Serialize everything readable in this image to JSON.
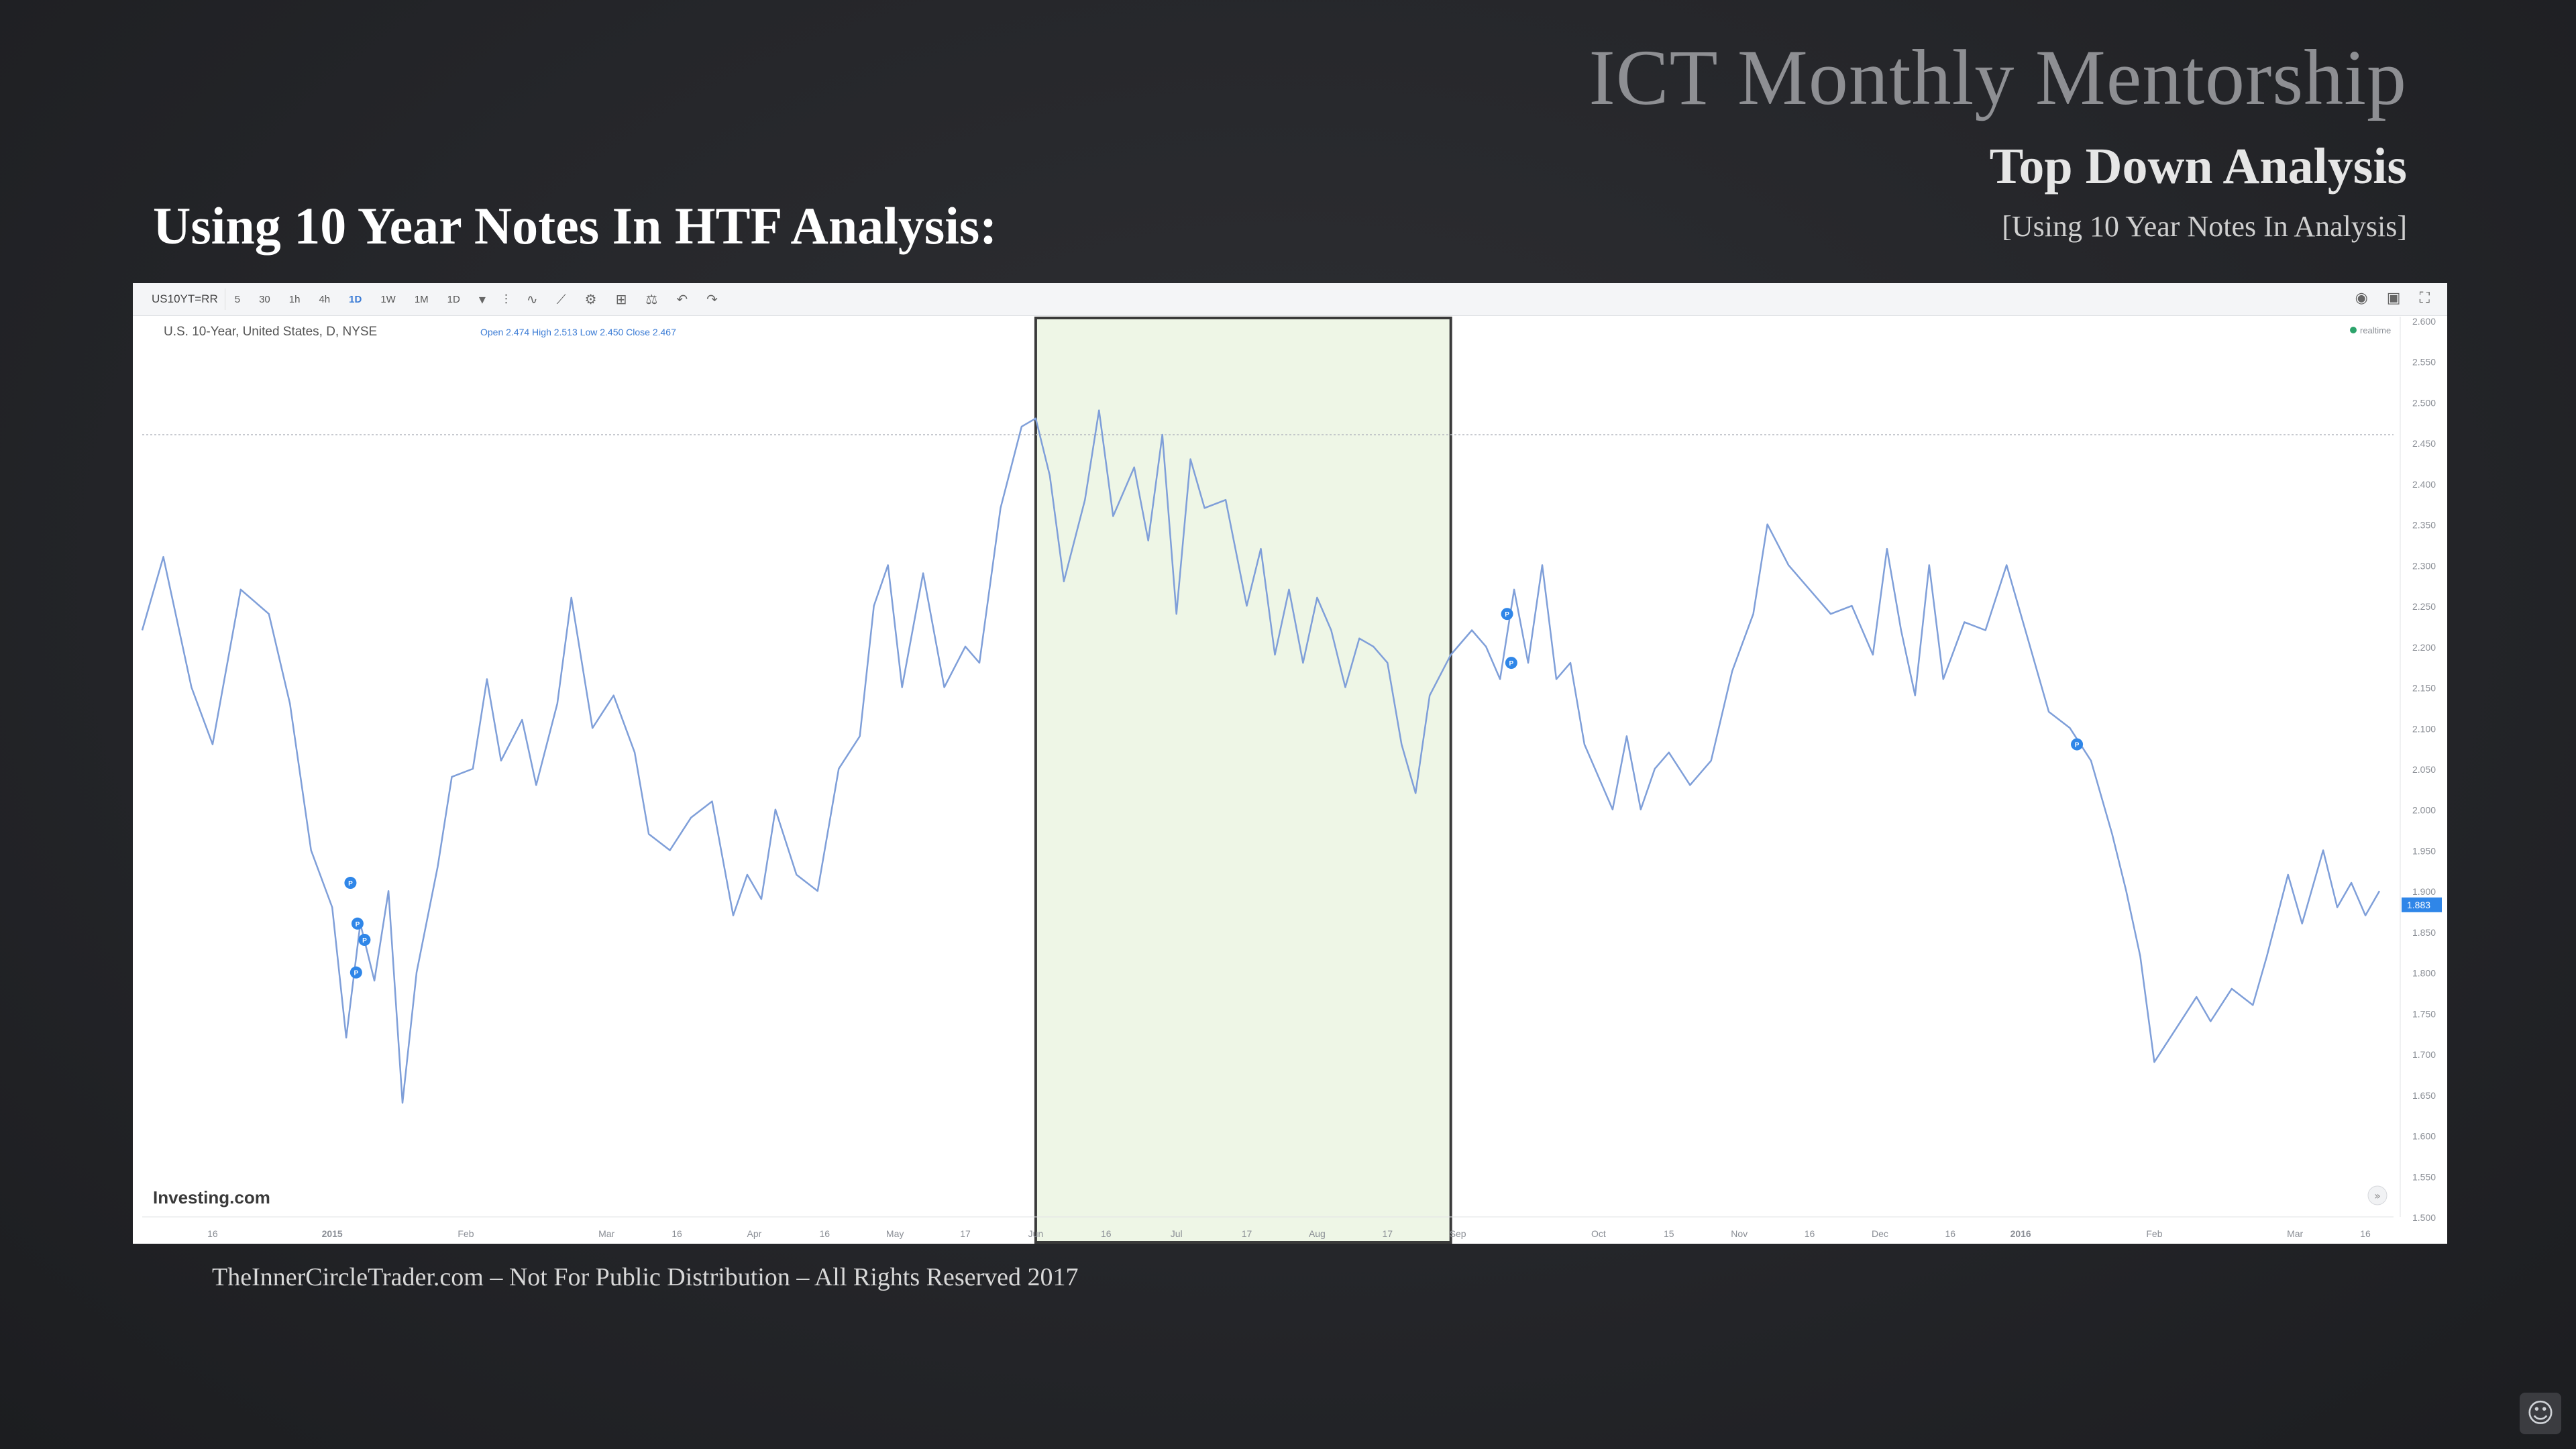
{
  "slide": {
    "brand_title": "ICT Monthly Mentorship",
    "subtitle": "Top Down Analysis",
    "bracket_note": "[Using 10 Year Notes In Analysis]",
    "heading": "Using 10 Year Notes In HTF Analysis:",
    "footer": "TheInnerCircleTrader.com – Not For Public Distribution – All Rights Reserved 2017"
  },
  "toolbar": {
    "symbol": "US10YT=RR",
    "intervals": [
      "5",
      "30",
      "1h",
      "4h",
      "1D",
      "1W",
      "1M",
      "1D"
    ],
    "active_interval": "1D"
  },
  "chart_data": {
    "type": "line",
    "title": "U.S. 10-Year, United States, D, NYSE",
    "ohlc": {
      "open_label": "Open",
      "open": "2.474",
      "high_label": "High",
      "high": "2.513",
      "low_label": "Low",
      "low": "2.450",
      "close_label": "Close",
      "close": "2.467"
    },
    "watermark": "Investing.com",
    "legend": "realtime",
    "line_color": "#7f9fd9",
    "highlight_color": "#eef6e6",
    "highlight_border": "#3a3a3a",
    "last_price": "1.883",
    "ylim": [
      1.5,
      2.6
    ],
    "y_ticks": [
      "2.600",
      "2.550",
      "2.500",
      "2.450",
      "2.400",
      "2.350",
      "2.300",
      "2.250",
      "2.200",
      "2.150",
      "2.100",
      "2.050",
      "2.000",
      "1.950",
      "1.900",
      "1.850",
      "1.800",
      "1.750",
      "1.700",
      "1.650",
      "1.600",
      "1.550",
      "1.500"
    ],
    "x_labels": [
      "16",
      "2015",
      "Feb",
      "Mar",
      "16",
      "Apr",
      "16",
      "May",
      "17",
      "Jun",
      "16",
      "Jul",
      "17",
      "Aug",
      "17",
      "Sep",
      "Oct",
      "15",
      "Nov",
      "16",
      "Dec",
      "16",
      "2016",
      "Feb",
      "Mar",
      "16"
    ],
    "x_label_pos": [
      0.5,
      1.35,
      2.3,
      3.3,
      3.8,
      4.35,
      4.85,
      5.35,
      5.85,
      6.35,
      6.85,
      7.35,
      7.85,
      8.35,
      8.85,
      9.35,
      10.35,
      10.85,
      11.35,
      11.85,
      12.35,
      12.85,
      13.35,
      14.3,
      15.3,
      15.8
    ],
    "highlight_x": [
      6.35,
      9.3
    ],
    "dashed_level": 2.46,
    "values_monthly": [
      [
        0.0,
        2.22
      ],
      [
        0.15,
        2.31
      ],
      [
        0.35,
        2.15
      ],
      [
        0.5,
        2.08
      ],
      [
        0.7,
        2.27
      ],
      [
        0.9,
        2.24
      ],
      [
        1.05,
        2.13
      ],
      [
        1.2,
        1.95
      ],
      [
        1.35,
        1.88
      ],
      [
        1.45,
        1.72
      ],
      [
        1.55,
        1.86
      ],
      [
        1.65,
        1.79
      ],
      [
        1.75,
        1.9
      ],
      [
        1.85,
        1.64
      ],
      [
        1.95,
        1.8
      ],
      [
        2.1,
        1.93
      ],
      [
        2.2,
        2.04
      ],
      [
        2.35,
        2.05
      ],
      [
        2.45,
        2.16
      ],
      [
        2.55,
        2.06
      ],
      [
        2.7,
        2.11
      ],
      [
        2.8,
        2.03
      ],
      [
        2.95,
        2.13
      ],
      [
        3.05,
        2.26
      ],
      [
        3.2,
        2.1
      ],
      [
        3.35,
        2.14
      ],
      [
        3.5,
        2.07
      ],
      [
        3.6,
        1.97
      ],
      [
        3.75,
        1.95
      ],
      [
        3.9,
        1.99
      ],
      [
        4.05,
        2.01
      ],
      [
        4.2,
        1.87
      ],
      [
        4.3,
        1.92
      ],
      [
        4.4,
        1.89
      ],
      [
        4.5,
        2.0
      ],
      [
        4.65,
        1.92
      ],
      [
        4.8,
        1.9
      ],
      [
        4.95,
        2.05
      ],
      [
        5.1,
        2.09
      ],
      [
        5.2,
        2.25
      ],
      [
        5.3,
        2.3
      ],
      [
        5.4,
        2.15
      ],
      [
        5.55,
        2.29
      ],
      [
        5.7,
        2.15
      ],
      [
        5.85,
        2.2
      ],
      [
        5.95,
        2.18
      ],
      [
        6.1,
        2.37
      ],
      [
        6.25,
        2.47
      ],
      [
        6.35,
        2.48
      ],
      [
        6.45,
        2.41
      ],
      [
        6.55,
        2.28
      ],
      [
        6.7,
        2.38
      ],
      [
        6.8,
        2.49
      ],
      [
        6.9,
        2.36
      ],
      [
        7.05,
        2.42
      ],
      [
        7.15,
        2.33
      ],
      [
        7.25,
        2.46
      ],
      [
        7.35,
        2.24
      ],
      [
        7.45,
        2.43
      ],
      [
        7.55,
        2.37
      ],
      [
        7.7,
        2.38
      ],
      [
        7.85,
        2.25
      ],
      [
        7.95,
        2.32
      ],
      [
        8.05,
        2.19
      ],
      [
        8.15,
        2.27
      ],
      [
        8.25,
        2.18
      ],
      [
        8.35,
        2.26
      ],
      [
        8.45,
        2.22
      ],
      [
        8.55,
        2.15
      ],
      [
        8.65,
        2.21
      ],
      [
        8.75,
        2.2
      ],
      [
        8.85,
        2.18
      ],
      [
        8.95,
        2.08
      ],
      [
        9.05,
        2.02
      ],
      [
        9.15,
        2.14
      ],
      [
        9.3,
        2.19
      ],
      [
        9.45,
        2.22
      ],
      [
        9.55,
        2.2
      ],
      [
        9.65,
        2.16
      ],
      [
        9.75,
        2.27
      ],
      [
        9.85,
        2.18
      ],
      [
        9.95,
        2.3
      ],
      [
        10.05,
        2.16
      ],
      [
        10.15,
        2.18
      ],
      [
        10.25,
        2.08
      ],
      [
        10.35,
        2.04
      ],
      [
        10.45,
        2.0
      ],
      [
        10.55,
        2.09
      ],
      [
        10.65,
        2.0
      ],
      [
        10.75,
        2.05
      ],
      [
        10.85,
        2.07
      ],
      [
        11.0,
        2.03
      ],
      [
        11.15,
        2.06
      ],
      [
        11.3,
        2.17
      ],
      [
        11.45,
        2.24
      ],
      [
        11.55,
        2.35
      ],
      [
        11.7,
        2.3
      ],
      [
        11.85,
        2.27
      ],
      [
        12.0,
        2.24
      ],
      [
        12.15,
        2.25
      ],
      [
        12.3,
        2.19
      ],
      [
        12.4,
        2.32
      ],
      [
        12.5,
        2.22
      ],
      [
        12.6,
        2.14
      ],
      [
        12.7,
        2.3
      ],
      [
        12.8,
        2.16
      ],
      [
        12.95,
        2.23
      ],
      [
        13.1,
        2.22
      ],
      [
        13.25,
        2.3
      ],
      [
        13.4,
        2.21
      ],
      [
        13.55,
        2.12
      ],
      [
        13.7,
        2.1
      ],
      [
        13.85,
        2.06
      ],
      [
        14.0,
        1.97
      ],
      [
        14.1,
        1.9
      ],
      [
        14.2,
        1.82
      ],
      [
        14.3,
        1.69
      ],
      [
        14.45,
        1.73
      ],
      [
        14.6,
        1.77
      ],
      [
        14.7,
        1.74
      ],
      [
        14.85,
        1.78
      ],
      [
        15.0,
        1.76
      ],
      [
        15.1,
        1.82
      ],
      [
        15.25,
        1.92
      ],
      [
        15.35,
        1.86
      ],
      [
        15.5,
        1.95
      ],
      [
        15.6,
        1.88
      ],
      [
        15.7,
        1.91
      ],
      [
        15.8,
        1.87
      ],
      [
        15.9,
        1.9
      ]
    ],
    "markers": [
      {
        "x": 1.48,
        "y": 1.91,
        "label": "P"
      },
      {
        "x": 1.53,
        "y": 1.86,
        "label": "P"
      },
      {
        "x": 1.58,
        "y": 1.84,
        "label": "P"
      },
      {
        "x": 1.52,
        "y": 1.8,
        "label": "P"
      },
      {
        "x": 9.7,
        "y": 2.24,
        "label": "P"
      },
      {
        "x": 9.73,
        "y": 2.18,
        "label": "P"
      },
      {
        "x": 13.75,
        "y": 2.08,
        "label": "P"
      }
    ]
  }
}
